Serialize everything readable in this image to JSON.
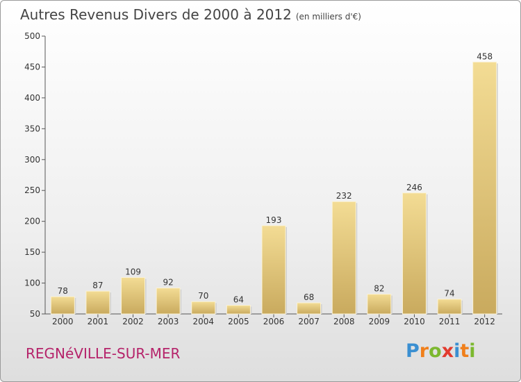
{
  "header": {
    "title": "Autres Revenus Divers de 2000 à 2012",
    "unit": "(en milliers d'€)"
  },
  "footer": {
    "city": "REGNéVILLE-SUR-MER",
    "logo_letters": [
      "P",
      "r",
      "o",
      "x",
      "i",
      "t",
      "i"
    ],
    "logo_colors": [
      "#3a8fd1",
      "#f07f1b",
      "#7cb82f",
      "#e23b2e",
      "#3a8fd1",
      "#f07f1b",
      "#7cb82f"
    ]
  },
  "chart_data": {
    "type": "bar",
    "categories": [
      "2000",
      "2001",
      "2002",
      "2003",
      "2004",
      "2005",
      "2006",
      "2007",
      "2008",
      "2009",
      "2010",
      "2011",
      "2012"
    ],
    "values": [
      78,
      87,
      109,
      92,
      70,
      64,
      193,
      68,
      232,
      82,
      246,
      74,
      458
    ],
    "ylim": [
      50,
      500
    ],
    "yticks": [
      50,
      100,
      150,
      200,
      250,
      300,
      350,
      400,
      450,
      500
    ],
    "grid": false,
    "bar_color_top": "#f3dc94",
    "bar_color_bottom": "#c9aa5e"
  }
}
